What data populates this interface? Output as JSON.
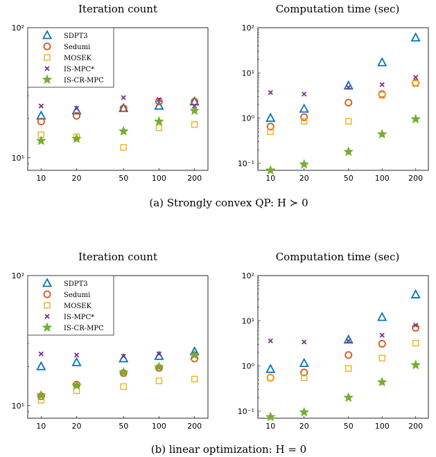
{
  "colors": {
    "SDPT3": "#0072BD",
    "Sedumi": "#D95319",
    "MOSEK": "#EDB120",
    "IS-MPC*": "#7E2F8E",
    "IS-CR-MPC": "#77AC30"
  },
  "chart_data": [
    {
      "type": "scatter",
      "title": "Iteration count",
      "caption": "(a) Strongly convex QP: H ≻ 0",
      "xscale": "log",
      "yscale": "log",
      "x": [
        10,
        20,
        50,
        100,
        200
      ],
      "xticks": [
        "10",
        "20",
        "50",
        "100",
        "200"
      ],
      "ylim": [
        8,
        100
      ],
      "yticks": [
        {
          "value": 10,
          "label": "10¹"
        },
        {
          "value": 100,
          "label": "10²"
        }
      ],
      "legend": "top-left",
      "series": [
        {
          "name": "SDPT3",
          "marker": "triangle",
          "values": [
            21,
            23,
            24,
            25,
            27
          ]
        },
        {
          "name": "Sedumi",
          "marker": "circle",
          "values": [
            19,
            21,
            24,
            27,
            27
          ]
        },
        {
          "name": "MOSEK",
          "marker": "square",
          "values": [
            15,
            14.5,
            12,
            17,
            18
          ]
        },
        {
          "name": "IS-MPC*",
          "marker": "x",
          "values": [
            25,
            24,
            29,
            28,
            25
          ]
        },
        {
          "name": "IS-CR-MPC",
          "marker": "star",
          "values": [
            13.5,
            14,
            16,
            19,
            23
          ]
        }
      ]
    },
    {
      "type": "scatter",
      "title": "Computation time (sec)",
      "xscale": "log",
      "yscale": "log",
      "x": [
        10,
        20,
        50,
        100,
        200
      ],
      "xticks": [
        "10",
        "20",
        "50",
        "100",
        "200"
      ],
      "ylim": [
        0.07,
        100
      ],
      "yticks": [
        {
          "value": 0.1,
          "label": "10⁻¹"
        },
        {
          "value": 1,
          "label": "10⁰"
        },
        {
          "value": 10,
          "label": "10¹"
        },
        {
          "value": 100,
          "label": "10²"
        }
      ],
      "series": [
        {
          "name": "SDPT3",
          "marker": "triangle",
          "values": [
            1.0,
            1.6,
            5.2,
            17,
            60
          ]
        },
        {
          "name": "Sedumi",
          "marker": "circle",
          "values": [
            0.65,
            1.05,
            2.2,
            3.4,
            6
          ]
        },
        {
          "name": "MOSEK",
          "marker": "square",
          "values": [
            0.5,
            0.85,
            0.85,
            3.2,
            5.8
          ]
        },
        {
          "name": "IS-MPC*",
          "marker": "x",
          "values": [
            3.7,
            3.4,
            4.8,
            5.5,
            8
          ]
        },
        {
          "name": "IS-CR-MPC",
          "marker": "star",
          "values": [
            0.07,
            0.095,
            0.18,
            0.44,
            0.95
          ]
        }
      ]
    },
    {
      "type": "scatter",
      "title": "Iteration count",
      "caption": "(b) linear optimization: H = 0",
      "xscale": "log",
      "yscale": "log",
      "x": [
        10,
        20,
        50,
        100,
        200
      ],
      "xticks": [
        "10",
        "20",
        "50",
        "100",
        "200"
      ],
      "ylim": [
        8,
        100
      ],
      "yticks": [
        {
          "value": 10,
          "label": "10¹"
        },
        {
          "value": 100,
          "label": "10²"
        }
      ],
      "legend": "top-left",
      "series": [
        {
          "name": "SDPT3",
          "marker": "triangle",
          "values": [
            20,
            21.5,
            23,
            24,
            26
          ]
        },
        {
          "name": "Sedumi",
          "marker": "circle",
          "values": [
            11.8,
            14.5,
            17.8,
            19.5,
            23
          ]
        },
        {
          "name": "MOSEK",
          "marker": "square",
          "values": [
            11,
            13,
            14,
            15.5,
            16
          ]
        },
        {
          "name": "IS-MPC*",
          "marker": "x",
          "values": [
            25,
            24.5,
            24,
            25,
            25
          ]
        },
        {
          "name": "IS-CR-MPC",
          "marker": "star",
          "values": [
            12,
            14.3,
            18,
            19.8,
            24.5
          ]
        }
      ]
    },
    {
      "type": "scatter",
      "title": "Computation time (sec)",
      "xscale": "log",
      "yscale": "log",
      "x": [
        10,
        20,
        50,
        100,
        200
      ],
      "xticks": [
        "10",
        "20",
        "50",
        "100",
        "200"
      ],
      "ylim": [
        0.07,
        100
      ],
      "yticks": [
        {
          "value": 0.1,
          "label": "10⁻¹"
        },
        {
          "value": 1,
          "label": "10⁰"
        },
        {
          "value": 10,
          "label": "10¹"
        },
        {
          "value": 100,
          "label": "10²"
        }
      ],
      "series": [
        {
          "name": "SDPT3",
          "marker": "triangle",
          "values": [
            0.85,
            1.15,
            3.8,
            12,
            38
          ]
        },
        {
          "name": "Sedumi",
          "marker": "circle",
          "values": [
            0.55,
            0.72,
            1.75,
            3.1,
            7
          ]
        },
        {
          "name": "MOSEK",
          "marker": "square",
          "values": [
            0.55,
            0.55,
            0.88,
            1.5,
            3.2
          ]
        },
        {
          "name": "IS-MPC*",
          "marker": "x",
          "values": [
            3.6,
            3.4,
            3.6,
            4.8,
            8
          ]
        },
        {
          "name": "IS-CR-MPC",
          "marker": "star",
          "values": [
            0.075,
            0.095,
            0.2,
            0.44,
            1.05
          ]
        }
      ]
    }
  ]
}
